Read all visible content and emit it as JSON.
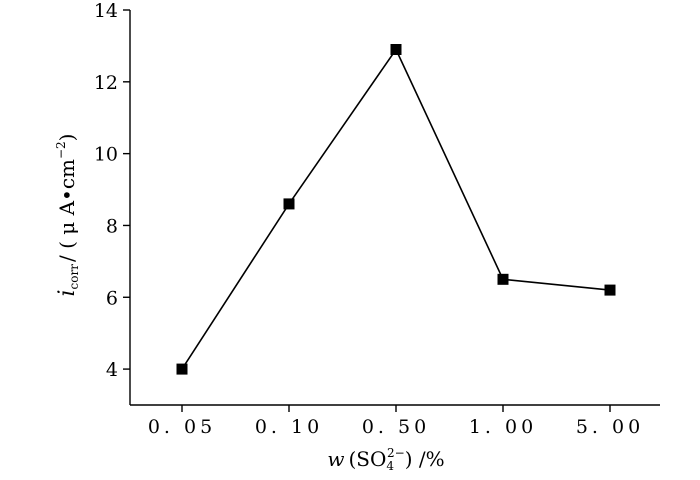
{
  "chart_data": {
    "type": "line",
    "categories": [
      "0. 05",
      "0. 10",
      "0. 50",
      "1. 00",
      "5. 00"
    ],
    "series": [
      {
        "values": [
          4.0,
          8.6,
          12.9,
          6.5,
          6.2
        ]
      }
    ],
    "ylim": [
      3,
      14
    ],
    "yticks": [
      4,
      6,
      8,
      10,
      12,
      14
    ],
    "grid": false,
    "marker": "square",
    "xlabel": {
      "symbol": "w",
      "open": "(SO",
      "sub": "4",
      "sup": "2−",
      "close": ") /%"
    },
    "ylabel": {
      "symbol": "i",
      "sub": "corr",
      "unit_open": "/ ( μ A•cm",
      "unit_sup": "−2",
      "unit_close": ")"
    }
  }
}
